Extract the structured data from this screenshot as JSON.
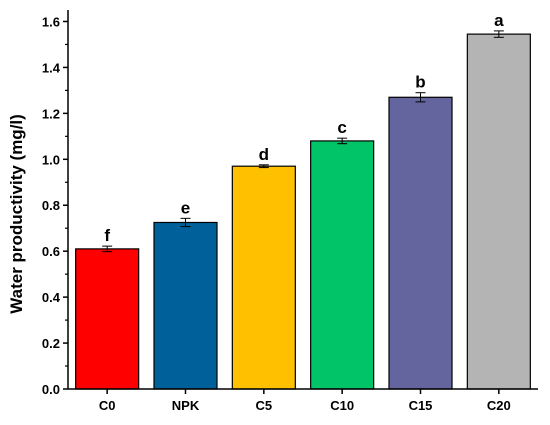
{
  "chart_data": {
    "type": "bar",
    "categories": [
      "C0",
      "NPK",
      "C5",
      "C10",
      "C15",
      "C20"
    ],
    "values": [
      0.61,
      0.725,
      0.97,
      1.08,
      1.27,
      1.545
    ],
    "errors": [
      0.012,
      0.018,
      0.006,
      0.012,
      0.02,
      0.014
    ],
    "letters": [
      "f",
      "e",
      "d",
      "c",
      "b",
      "a"
    ],
    "colors": [
      "#ff0000",
      "#00609a",
      "#ffc000",
      "#00c467",
      "#64649e",
      "#b4b4b4"
    ],
    "ylabel": "Water productivity (mg/l)",
    "xlabel": "",
    "ylim": [
      0,
      1.65
    ],
    "yticks": [
      "0.0",
      "0.2",
      "0.4",
      "0.6",
      "0.8",
      "1.0",
      "1.2",
      "1.4",
      "1.6"
    ]
  }
}
